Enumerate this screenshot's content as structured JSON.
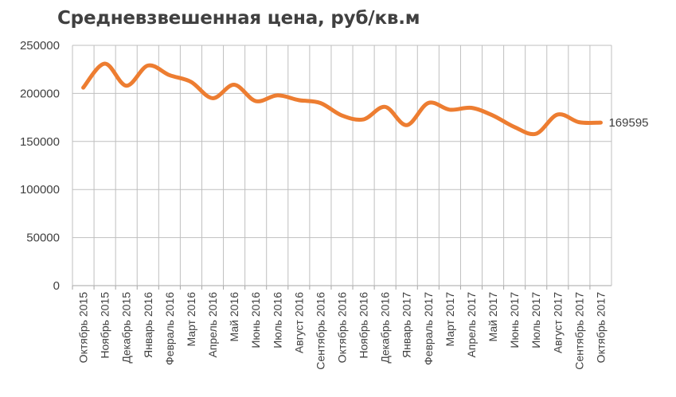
{
  "chart_data": {
    "type": "line",
    "title": "Средневзвешенная цена, руб/кв.м",
    "xlabel": "",
    "ylabel": "",
    "ylim": [
      0,
      250000
    ],
    "yticks": [
      "0",
      "50000",
      "100000",
      "150000",
      "200000",
      "250000"
    ],
    "grid": true,
    "categories": [
      "Октябрь 2015",
      "Ноябрь 2015",
      "Декабрь 2015",
      "Январь 2016",
      "Февраль 2016",
      "Март 2016",
      "Апрель 2016",
      "Май 2016",
      "Июнь 2016",
      "Июль 2016",
      "Август 2016",
      "Сентябрь 2016",
      "Октябрь 2016",
      "Ноябрь 2016",
      "Декабрь 2016",
      "Январь 2017",
      "Февраль 2017",
      "Март 2017",
      "Апрель 2017",
      "Май 2017",
      "Июнь 2017",
      "Июль 2017",
      "Август 2017",
      "Сентябрь 2017",
      "Октябрь 2017"
    ],
    "series": [
      {
        "color": "#ED7D31",
        "values": [
          206000,
          231000,
          208000,
          229000,
          219000,
          212000,
          195000,
          209000,
          192000,
          198000,
          193000,
          190000,
          177000,
          173000,
          186000,
          167000,
          190000,
          183000,
          185000,
          177000,
          165000,
          158000,
          178000,
          170000,
          169595
        ]
      }
    ],
    "end_label": "169595"
  }
}
